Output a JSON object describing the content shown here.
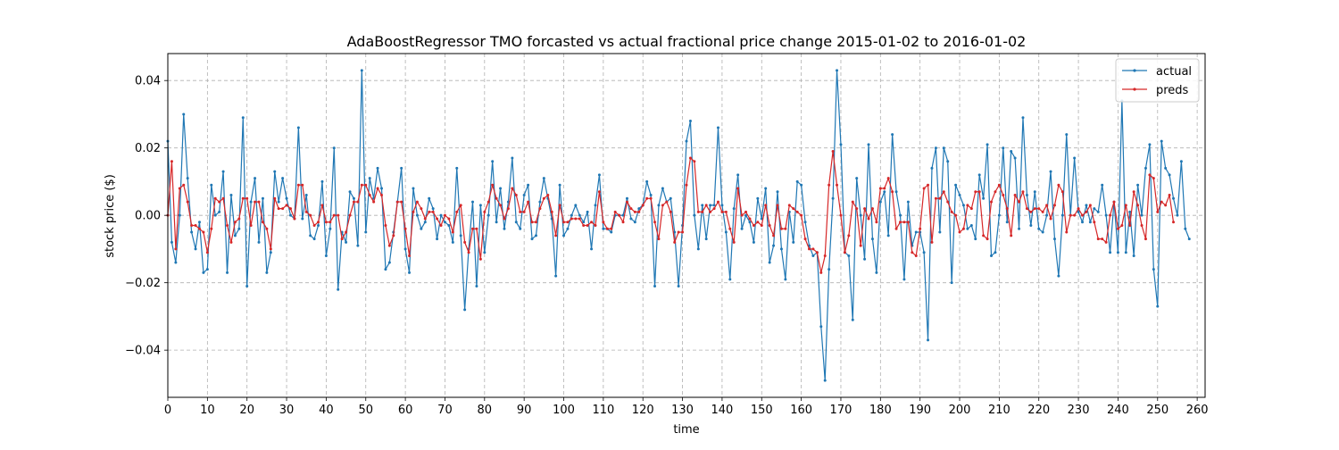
{
  "chart_data": {
    "type": "line",
    "title": "AdaBoostRegressor TMO forcasted vs actual fractional price change 2015-01-02 to 2016-01-02",
    "xlabel": "time",
    "ylabel": "stock price ($)",
    "xlim": [
      0,
      262
    ],
    "ylim": [
      -0.054,
      0.048
    ],
    "xticks": [
      0,
      10,
      20,
      30,
      40,
      50,
      60,
      70,
      80,
      90,
      100,
      110,
      120,
      130,
      140,
      150,
      160,
      170,
      180,
      190,
      200,
      210,
      220,
      230,
      240,
      250,
      260
    ],
    "yticks": [
      -0.04,
      -0.02,
      0.0,
      0.02,
      0.04
    ],
    "ytick_labels": [
      "−0.04",
      "−0.02",
      "0.00",
      "0.02",
      "0.04"
    ],
    "grid": true,
    "legend_position": "top-right",
    "series": [
      {
        "name": "actual",
        "color": "#1f77b4",
        "values": [
          0.022,
          -0.008,
          -0.014,
          0.0,
          0.03,
          0.011,
          -0.005,
          -0.01,
          -0.002,
          -0.017,
          -0.016,
          0.009,
          0.0,
          0.001,
          0.013,
          -0.017,
          0.006,
          -0.006,
          -0.004,
          0.029,
          -0.021,
          0.004,
          0.011,
          -0.008,
          0.005,
          -0.017,
          -0.011,
          0.013,
          0.004,
          0.011,
          0.005,
          0.0,
          -0.001,
          0.026,
          -0.001,
          0.006,
          -0.006,
          -0.007,
          -0.003,
          0.01,
          -0.012,
          -0.004,
          0.02,
          -0.022,
          -0.005,
          -0.008,
          0.007,
          0.005,
          -0.009,
          0.043,
          -0.005,
          0.011,
          0.005,
          0.014,
          0.008,
          -0.016,
          -0.014,
          -0.005,
          0.004,
          0.014,
          -0.01,
          -0.017,
          0.008,
          0.0,
          -0.004,
          -0.002,
          0.005,
          0.002,
          -0.007,
          0.0,
          -0.002,
          -0.003,
          -0.008,
          0.014,
          -0.006,
          -0.028,
          -0.01,
          0.004,
          -0.021,
          0.003,
          -0.011,
          0.0,
          0.016,
          -0.002,
          0.008,
          -0.004,
          0.004,
          0.017,
          -0.002,
          -0.004,
          0.006,
          0.009,
          -0.007,
          -0.006,
          0.004,
          0.011,
          0.005,
          -0.001,
          -0.018,
          0.009,
          -0.006,
          -0.004,
          0.0,
          0.003,
          0.0,
          -0.002,
          0.001,
          -0.01,
          0.003,
          0.012,
          -0.004,
          -0.004,
          -0.005,
          0.0,
          0.0,
          0.0,
          0.005,
          -0.001,
          -0.002,
          0.002,
          0.003,
          0.01,
          0.006,
          -0.021,
          0.003,
          0.008,
          0.004,
          0.005,
          -0.005,
          -0.021,
          -0.003,
          0.022,
          0.028,
          0.0,
          -0.01,
          0.003,
          -0.007,
          0.003,
          0.003,
          0.026,
          0.003,
          -0.005,
          -0.019,
          0.002,
          0.012,
          -0.004,
          0.0,
          -0.002,
          -0.008,
          0.005,
          -0.001,
          0.008,
          -0.014,
          -0.009,
          0.007,
          -0.01,
          -0.019,
          0.001,
          -0.008,
          0.01,
          0.009,
          -0.002,
          -0.009,
          -0.012,
          -0.011,
          -0.033,
          -0.049,
          -0.016,
          0.005,
          0.043,
          0.021,
          -0.011,
          -0.012,
          -0.031,
          0.011,
          0.0,
          -0.013,
          0.021,
          -0.007,
          -0.017,
          0.004,
          0.007,
          -0.006,
          0.024,
          0.007,
          0.0,
          -0.019,
          0.004,
          -0.009,
          -0.005,
          -0.005,
          -0.011,
          -0.037,
          0.014,
          0.02,
          -0.005,
          0.02,
          0.016,
          -0.02,
          0.009,
          0.006,
          0.003,
          -0.004,
          -0.003,
          -0.007,
          0.012,
          0.005,
          0.021,
          -0.012,
          -0.011,
          0.0,
          0.02,
          -0.002,
          0.019,
          0.017,
          -0.004,
          0.029,
          0.006,
          -0.003,
          0.007,
          -0.004,
          -0.005,
          0.0,
          0.013,
          -0.007,
          -0.018,
          0.0,
          0.024,
          0.0,
          0.017,
          0.001,
          -0.002,
          0.003,
          -0.002,
          0.002,
          0.001,
          0.009,
          0.0,
          -0.011,
          0.004,
          -0.011,
          0.034,
          -0.011,
          0.001,
          -0.012,
          0.009,
          0.0,
          0.014,
          0.021,
          -0.016,
          -0.027,
          0.022,
          0.014,
          0.012,
          0.005,
          0.0,
          0.016,
          -0.004,
          -0.007
        ]
      },
      {
        "name": "preds",
        "color": "#d62728",
        "values": [
          0.0,
          0.016,
          -0.01,
          0.008,
          0.009,
          0.004,
          -0.003,
          -0.003,
          -0.004,
          -0.005,
          -0.011,
          -0.004,
          0.005,
          0.004,
          0.005,
          -0.003,
          -0.008,
          -0.002,
          -0.001,
          0.005,
          0.005,
          -0.003,
          0.004,
          0.004,
          -0.002,
          -0.004,
          -0.01,
          0.005,
          0.002,
          0.002,
          0.003,
          0.002,
          -0.001,
          0.009,
          0.009,
          0.001,
          0.0,
          -0.003,
          -0.002,
          0.003,
          -0.002,
          -0.002,
          0.0,
          0.0,
          -0.007,
          -0.005,
          0.0,
          0.004,
          0.004,
          0.009,
          0.009,
          0.006,
          0.004,
          0.008,
          0.006,
          -0.003,
          -0.009,
          -0.006,
          0.004,
          0.004,
          -0.004,
          -0.012,
          0.001,
          0.004,
          0.002,
          -0.001,
          0.001,
          0.001,
          -0.001,
          -0.003,
          0.0,
          -0.001,
          -0.005,
          0.001,
          0.003,
          -0.008,
          -0.011,
          -0.004,
          -0.004,
          -0.013,
          0.001,
          0.004,
          0.009,
          0.005,
          0.003,
          -0.001,
          0.002,
          0.008,
          0.006,
          0.001,
          0.001,
          0.004,
          -0.002,
          -0.002,
          0.002,
          0.005,
          0.006,
          0.001,
          -0.006,
          0.003,
          -0.002,
          -0.002,
          -0.001,
          -0.001,
          -0.001,
          -0.003,
          -0.003,
          -0.002,
          -0.003,
          0.007,
          -0.002,
          -0.004,
          -0.004,
          0.001,
          0.0,
          -0.002,
          0.004,
          0.002,
          0.001,
          0.001,
          0.003,
          0.005,
          0.005,
          -0.002,
          -0.007,
          0.003,
          0.004,
          0.001,
          -0.008,
          -0.005,
          -0.005,
          0.009,
          0.017,
          0.016,
          0.001,
          0.001,
          0.003,
          0.001,
          0.002,
          0.004,
          0.001,
          0.001,
          -0.004,
          -0.008,
          0.008,
          0.0,
          0.001,
          -0.001,
          -0.003,
          -0.002,
          -0.003,
          0.003,
          -0.003,
          -0.006,
          0.003,
          -0.004,
          -0.004,
          0.003,
          0.002,
          0.001,
          0.0,
          -0.007,
          -0.01,
          -0.01,
          -0.011,
          -0.017,
          -0.012,
          0.009,
          0.019,
          0.009,
          0.0,
          -0.011,
          -0.006,
          0.004,
          0.002,
          -0.009,
          0.002,
          -0.001,
          0.002,
          -0.002,
          0.008,
          0.008,
          0.011,
          0.007,
          -0.004,
          -0.002,
          -0.002,
          -0.002,
          -0.011,
          -0.012,
          -0.004,
          0.008,
          0.009,
          -0.008,
          0.005,
          0.005,
          0.007,
          0.004,
          0.001,
          0.0,
          -0.005,
          -0.004,
          0.003,
          0.002,
          0.007,
          0.007,
          -0.006,
          -0.007,
          0.004,
          0.007,
          0.009,
          0.006,
          0.002,
          -0.006,
          0.006,
          0.004,
          0.007,
          0.002,
          0.001,
          0.002,
          0.002,
          0.001,
          0.003,
          -0.001,
          0.003,
          0.009,
          0.007,
          -0.005,
          0.0,
          0.0,
          0.002,
          0.0,
          0.001,
          0.003,
          -0.002,
          -0.007,
          -0.007,
          -0.008,
          0.0,
          0.004,
          -0.004,
          -0.003,
          0.003,
          -0.003,
          0.007,
          0.003,
          -0.003,
          -0.007,
          0.012,
          0.011,
          0.001,
          0.004,
          0.003,
          0.006,
          -0.002
        ]
      }
    ]
  }
}
